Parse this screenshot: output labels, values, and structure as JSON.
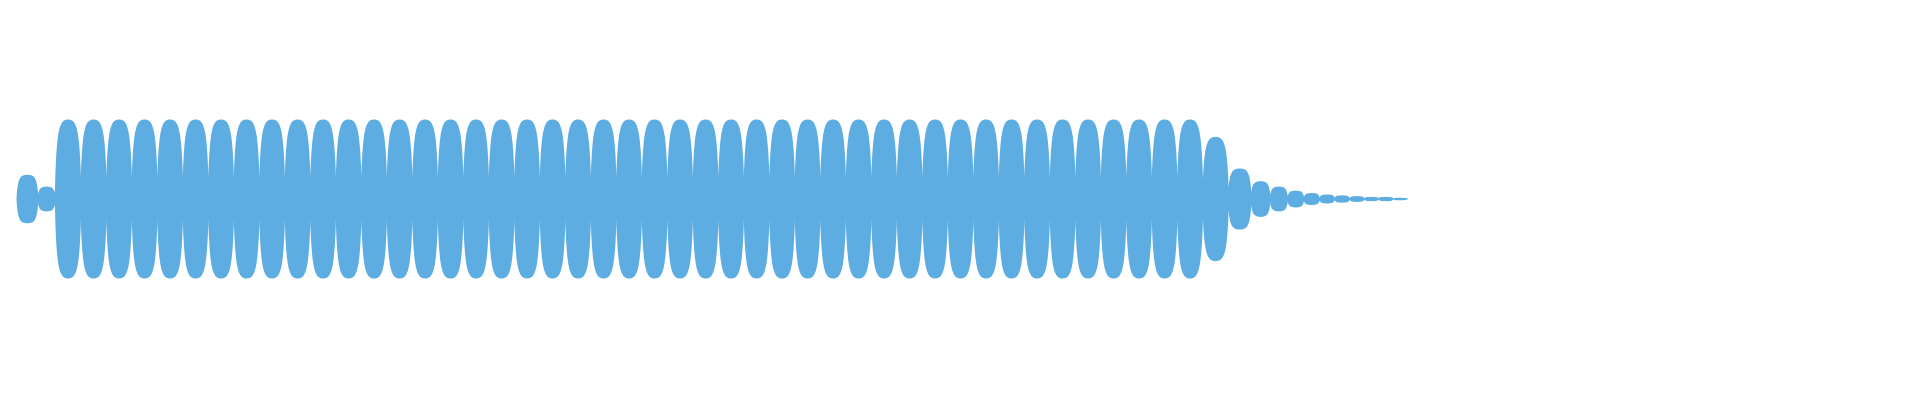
{
  "waveform": {
    "color": "#5dade2",
    "peaks": [
      0.3,
      0.15,
      1,
      1,
      1,
      1,
      1,
      1,
      1,
      1,
      1,
      1,
      1,
      1,
      1,
      1,
      1,
      1,
      1,
      1,
      1,
      1,
      1,
      1,
      1,
      1,
      1,
      1,
      1,
      1,
      1,
      1,
      1,
      1,
      1,
      1,
      1,
      1,
      1,
      1,
      1,
      1,
      1,
      1,
      1,
      1,
      1,
      0.78,
      0.38,
      0.22,
      0.15,
      0.1,
      0.07,
      0.05,
      0.04,
      0.03,
      0.02,
      0.02,
      0.01
    ]
  }
}
